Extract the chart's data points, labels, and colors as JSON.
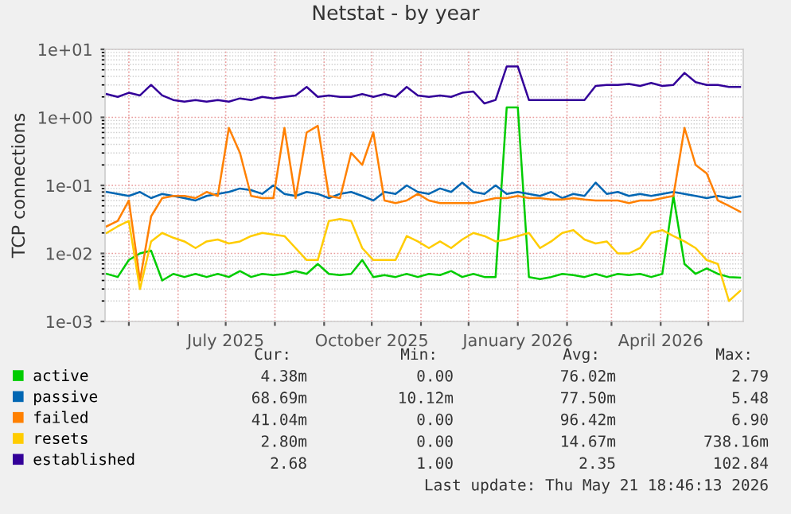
{
  "chart_data": {
    "type": "line",
    "title": "Netstat - by year",
    "ylabel": "TCP connections",
    "log": "y",
    "grid": true,
    "legend": "bottom",
    "marker": "none",
    "line_style": "solid",
    "xlim": [
      "2025-04-16",
      "2026-05-23"
    ],
    "xticks": [
      {
        "value": "2025-05-01",
        "label": null
      },
      {
        "value": "2025-06-01",
        "label": null
      },
      {
        "value": "2025-07-01",
        "label": "July 2025"
      },
      {
        "value": "2025-08-01",
        "label": null
      },
      {
        "value": "2025-09-01",
        "label": null
      },
      {
        "value": "2025-10-01",
        "label": "October 2025"
      },
      {
        "value": "2025-11-01",
        "label": null
      },
      {
        "value": "2025-12-01",
        "label": null
      },
      {
        "value": "2026-01-01",
        "label": "January 2026"
      },
      {
        "value": "2026-02-01",
        "label": null
      },
      {
        "value": "2026-03-01",
        "label": null
      },
      {
        "value": "2026-04-01",
        "label": "April 2026"
      },
      {
        "value": "2026-05-01",
        "label": null
      }
    ],
    "ylim": [
      0.001,
      10
    ],
    "yticks": [
      {
        "value": 0.001,
        "label": "1e-03"
      },
      {
        "value": 0.01,
        "label": "1e-02"
      },
      {
        "value": 0.1,
        "label": "1e-01"
      },
      {
        "value": 1,
        "label": "1e+00"
      },
      {
        "value": 10,
        "label": "1e+01"
      }
    ],
    "x": [
      "2025-04-17",
      "2025-04-24",
      "2025-05-01",
      "2025-05-08",
      "2025-05-15",
      "2025-05-22",
      "2025-05-29",
      "2025-06-05",
      "2025-06-12",
      "2025-06-19",
      "2025-06-26",
      "2025-07-03",
      "2025-07-10",
      "2025-07-17",
      "2025-07-24",
      "2025-07-31",
      "2025-08-07",
      "2025-08-14",
      "2025-08-21",
      "2025-08-28",
      "2025-09-04",
      "2025-09-11",
      "2025-09-18",
      "2025-09-25",
      "2025-10-02",
      "2025-10-09",
      "2025-10-16",
      "2025-10-23",
      "2025-10-30",
      "2025-11-06",
      "2025-11-13",
      "2025-11-20",
      "2025-11-27",
      "2025-12-04",
      "2025-12-11",
      "2025-12-18",
      "2025-12-25",
      "2026-01-01",
      "2026-01-08",
      "2026-01-15",
      "2026-01-22",
      "2026-01-29",
      "2026-02-05",
      "2026-02-12",
      "2026-02-19",
      "2026-02-26",
      "2026-03-05",
      "2026-03-12",
      "2026-03-19",
      "2026-03-26",
      "2026-04-02",
      "2026-04-09",
      "2026-04-16",
      "2026-04-23",
      "2026-04-30",
      "2026-05-07",
      "2026-05-14",
      "2026-05-21"
    ],
    "series": [
      {
        "name": "active",
        "color": "#00cc00",
        "values": [
          0.005,
          0.0045,
          0.008,
          0.01,
          0.011,
          0.004,
          0.005,
          0.0045,
          0.005,
          0.0045,
          0.005,
          0.0045,
          0.0055,
          0.0045,
          0.005,
          0.0048,
          0.005,
          0.0055,
          0.005,
          0.007,
          0.005,
          0.0048,
          0.005,
          0.008,
          0.0045,
          0.0048,
          0.0045,
          0.005,
          0.0045,
          0.005,
          0.0048,
          0.0055,
          0.0045,
          0.005,
          0.0045,
          0.0045,
          1.4,
          1.4,
          0.0045,
          0.0042,
          0.0045,
          0.005,
          0.0048,
          0.0045,
          0.005,
          0.0045,
          0.005,
          0.0048,
          0.005,
          0.0045,
          0.005,
          0.07,
          0.007,
          0.005,
          0.006,
          0.005,
          0.0045,
          0.0044
        ]
      },
      {
        "name": "passive",
        "color": "#0066b3",
        "values": [
          0.08,
          0.075,
          0.07,
          0.08,
          0.065,
          0.075,
          0.07,
          0.065,
          0.06,
          0.07,
          0.075,
          0.08,
          0.09,
          0.085,
          0.075,
          0.1,
          0.075,
          0.07,
          0.08,
          0.075,
          0.065,
          0.075,
          0.08,
          0.07,
          0.06,
          0.08,
          0.075,
          0.1,
          0.08,
          0.075,
          0.09,
          0.08,
          0.11,
          0.08,
          0.075,
          0.1,
          0.075,
          0.08,
          0.075,
          0.07,
          0.08,
          0.065,
          0.075,
          0.07,
          0.11,
          0.075,
          0.08,
          0.07,
          0.075,
          0.07,
          0.075,
          0.08,
          0.075,
          0.07,
          0.065,
          0.07,
          0.065,
          0.069
        ]
      },
      {
        "name": "failed",
        "color": "#ff8000",
        "values": [
          0.025,
          0.03,
          0.06,
          0.004,
          0.035,
          0.065,
          0.07,
          0.07,
          0.065,
          0.08,
          0.07,
          0.7,
          0.3,
          0.07,
          0.065,
          0.065,
          0.7,
          0.065,
          0.6,
          0.75,
          0.07,
          0.065,
          0.3,
          0.2,
          0.6,
          0.06,
          0.055,
          0.06,
          0.075,
          0.06,
          0.055,
          0.055,
          0.055,
          0.055,
          0.06,
          0.065,
          0.065,
          0.07,
          0.065,
          0.065,
          0.062,
          0.062,
          0.065,
          0.062,
          0.06,
          0.06,
          0.06,
          0.055,
          0.06,
          0.06,
          0.065,
          0.07,
          0.7,
          0.2,
          0.15,
          0.06,
          0.05,
          0.041
        ]
      },
      {
        "name": "resets",
        "color": "#ffcc00",
        "values": [
          0.02,
          0.025,
          0.03,
          0.003,
          0.015,
          0.02,
          0.017,
          0.015,
          0.012,
          0.015,
          0.016,
          0.014,
          0.015,
          0.018,
          0.02,
          0.019,
          0.018,
          0.012,
          0.008,
          0.008,
          0.03,
          0.032,
          0.03,
          0.012,
          0.008,
          0.008,
          0.008,
          0.018,
          0.015,
          0.012,
          0.015,
          0.012,
          0.016,
          0.02,
          0.018,
          0.015,
          0.016,
          0.018,
          0.02,
          0.012,
          0.015,
          0.02,
          0.022,
          0.016,
          0.014,
          0.015,
          0.01,
          0.01,
          0.012,
          0.02,
          0.022,
          0.018,
          0.015,
          0.012,
          0.008,
          0.007,
          0.002,
          0.0028
        ]
      },
      {
        "name": "established",
        "color": "#330099",
        "values": [
          2.2,
          2.0,
          2.3,
          2.1,
          3.0,
          2.1,
          1.8,
          1.7,
          1.8,
          1.7,
          1.8,
          1.7,
          1.9,
          1.8,
          2.0,
          1.9,
          2.0,
          2.1,
          2.8,
          2.0,
          2.1,
          2.0,
          2.0,
          2.2,
          2.0,
          2.2,
          2.0,
          2.8,
          2.1,
          2.0,
          2.1,
          2.0,
          2.3,
          2.4,
          1.6,
          1.8,
          5.6,
          5.6,
          1.8,
          1.8,
          1.8,
          1.8,
          1.8,
          1.8,
          2.9,
          3.0,
          3.0,
          3.1,
          2.9,
          3.2,
          2.9,
          3.0,
          4.5,
          3.3,
          3.0,
          3.0,
          2.8,
          2.8
        ]
      }
    ],
    "annotations": [
      "Cur:",
      "Min:",
      "Avg:",
      "Max:",
      "4.38m",
      "0.00",
      "76.02m",
      "2.79",
      "68.69m",
      "10.12m",
      "77.50m",
      "5.48",
      "41.04m",
      "0.00",
      "96.42m",
      "6.90",
      "2.80m",
      "0.00",
      "14.67m",
      "738.16m",
      "2.68",
      "1.00",
      "2.35",
      "102.84",
      "Last update: Thu May 21 18:46:13 2026"
    ]
  }
}
